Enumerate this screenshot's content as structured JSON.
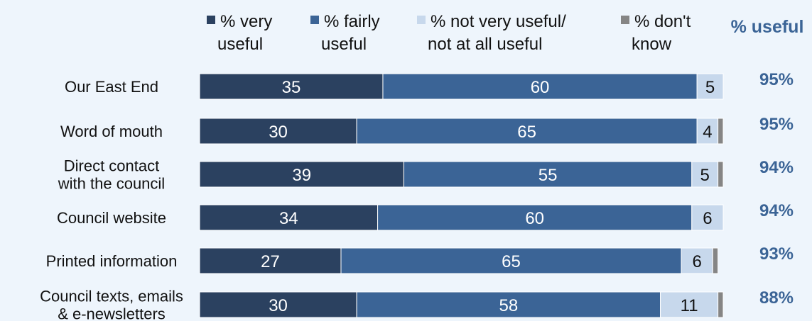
{
  "chart_data": {
    "type": "bar",
    "orientation": "horizontal",
    "stacked": true,
    "title": "",
    "xlabel": "",
    "ylabel": "",
    "xlim": [
      0,
      100
    ],
    "grid": false,
    "legend_position": "top",
    "categories": [
      [
        "Our East End"
      ],
      [
        "Word of mouth"
      ],
      [
        "Direct contact",
        "with the council"
      ],
      [
        "Council website"
      ],
      [
        "Printed information"
      ],
      [
        "Council texts, emails",
        "& e-newsletters"
      ]
    ],
    "series": [
      {
        "name": [
          "% very",
          "useful"
        ],
        "color": "#2b4160",
        "label_color": "#ffffff",
        "values": [
          35,
          30,
          39,
          34,
          27,
          30
        ]
      },
      {
        "name": [
          "% fairly",
          "useful"
        ],
        "color": "#3b6496",
        "label_color": "#ffffff",
        "values": [
          60,
          65,
          55,
          60,
          65,
          58
        ]
      },
      {
        "name": [
          "% not very useful/",
          "not at all useful"
        ],
        "color": "#c7d8ec",
        "label_color": "#111111",
        "values": [
          5,
          4,
          5,
          6,
          6,
          11
        ]
      },
      {
        "name": [
          "% don't",
          "know"
        ],
        "color": "#858585",
        "label_color": "#111111",
        "values": [
          0,
          1,
          1,
          0,
          1,
          1
        ],
        "labels_shown": false
      }
    ],
    "useful_column": {
      "title": "% useful",
      "color": "#3b6496",
      "values": [
        "95%",
        "95%",
        "94%",
        "94%",
        "93%",
        "88%"
      ]
    }
  }
}
